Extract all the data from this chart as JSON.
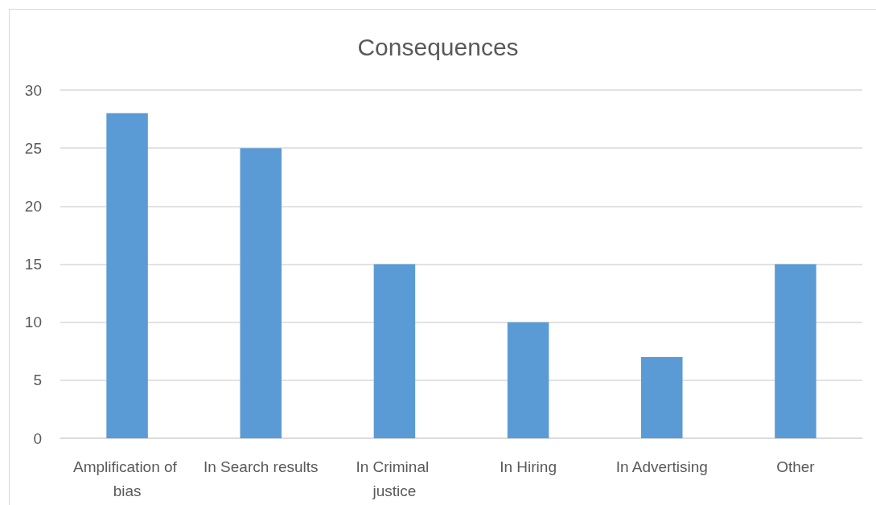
{
  "chart_data": {
    "type": "bar",
    "title": "Consequences",
    "categories": [
      "Amplification of bias",
      "In Search results",
      "In Criminal justice",
      "In Hiring",
      "In Advertising",
      "Other"
    ],
    "values": [
      28,
      25,
      15,
      10,
      7,
      15
    ],
    "color": "#5b9bd5",
    "ylim": [
      0,
      30
    ],
    "yticks": [
      0,
      5,
      10,
      15,
      20,
      25,
      30
    ],
    "grid": "y"
  }
}
